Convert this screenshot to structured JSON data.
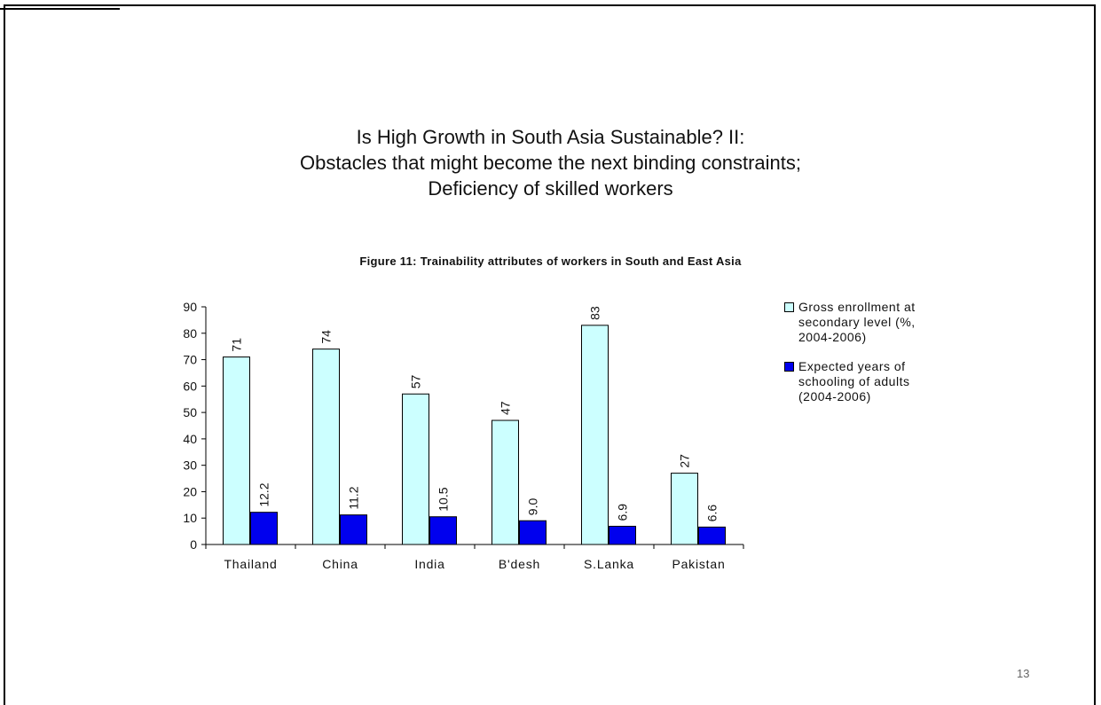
{
  "slide": {
    "title_lines": [
      "Is High Growth in South Asia Sustainable? II:",
      "Obstacles that might become the next binding constraints;",
      "Deficiency of skilled workers"
    ],
    "page_number": "13"
  },
  "chart_data": {
    "type": "bar",
    "title": "Figure 11: Trainability attributes of workers in South and East Asia",
    "categories": [
      "Thailand",
      "China",
      "India",
      "B'desh",
      "S.Lanka",
      "Pakistan"
    ],
    "series": [
      {
        "name": "Gross enrollment at secondary level (%, 2004-2006)",
        "name_lines": [
          "Gross enrollment at",
          "secondary level (%,",
          "2004-2006)"
        ],
        "values": [
          71,
          74,
          57,
          47,
          83,
          27
        ],
        "labels": [
          "71",
          "74",
          "57",
          "47",
          "83",
          "27"
        ],
        "color": "#ccffff"
      },
      {
        "name": "Expected years of schooling of adults (2004-2006)",
        "name_lines": [
          "Expected years of",
          "schooling of adults",
          "(2004-2006)"
        ],
        "values": [
          12.2,
          11.2,
          10.5,
          9.0,
          6.9,
          6.6
        ],
        "labels": [
          "12.2",
          "11.2",
          "10.5",
          "9.0",
          "6.9",
          "6.6"
        ],
        "color": "#0000ee"
      }
    ],
    "ylim": [
      0,
      90
    ],
    "yticks": [
      "0",
      "10",
      "20",
      "30",
      "40",
      "50",
      "60",
      "70",
      "80",
      "90"
    ],
    "xlabel": "",
    "ylabel": "",
    "legend_position": "right",
    "grid": false
  }
}
